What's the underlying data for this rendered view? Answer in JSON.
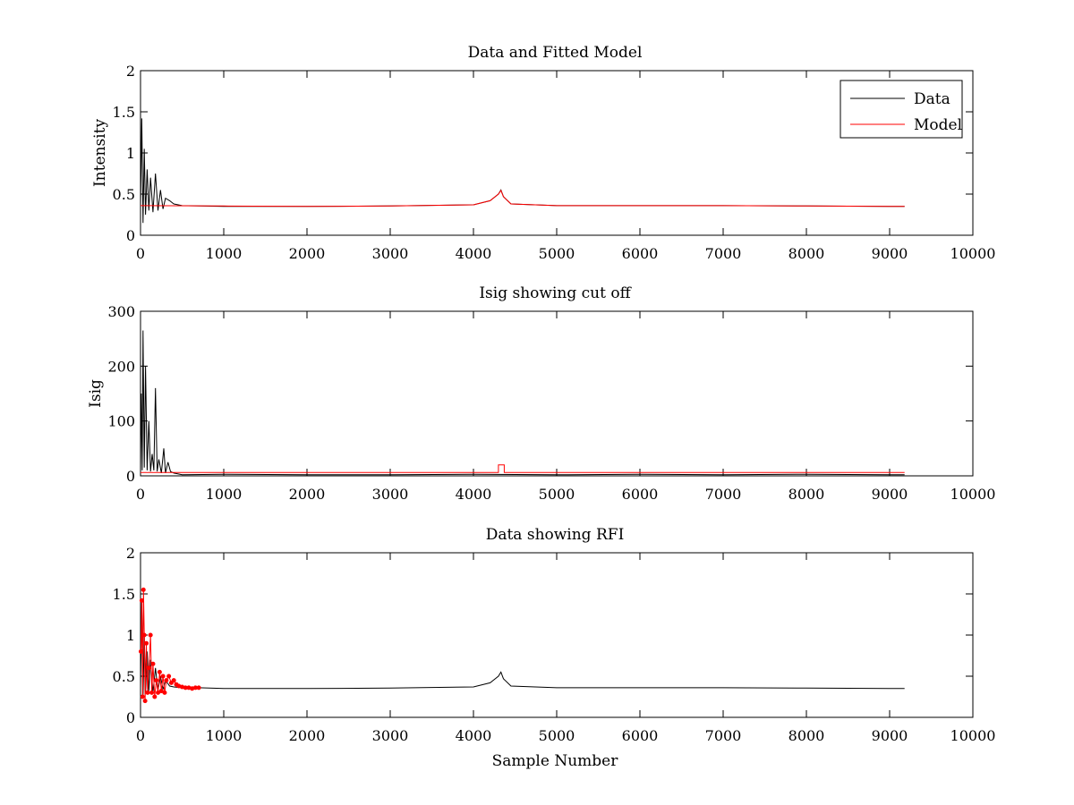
{
  "colors": {
    "data": "#000000",
    "model": "#ff0000",
    "rfi": "#ff0000"
  },
  "chart_data": [
    {
      "type": "line",
      "title": "Data and Fitted Model",
      "xlabel": "",
      "ylabel": "Intensity",
      "xlim": [
        0,
        10000
      ],
      "ylim": [
        0,
        2
      ],
      "xticks": [
        "0",
        "1000",
        "2000",
        "3000",
        "4000",
        "5000",
        "6000",
        "7000",
        "8000",
        "9000",
        "10000"
      ],
      "yticks": [
        "0",
        "0.5",
        "1",
        "1.5",
        "2"
      ],
      "legend": {
        "position": "top-right",
        "entries": [
          "Data",
          "Model"
        ]
      },
      "series": [
        {
          "name": "Data",
          "color": "#000000",
          "x": [
            0,
            15,
            30,
            45,
            60,
            80,
            100,
            120,
            150,
            180,
            210,
            240,
            270,
            300,
            350,
            400,
            500,
            1000,
            2000,
            3000,
            4000,
            4200,
            4300,
            4330,
            4360,
            4450,
            5000,
            6000,
            7000,
            8000,
            9000,
            9180
          ],
          "y": [
            0.35,
            1.42,
            0.15,
            1.05,
            0.25,
            0.8,
            0.3,
            0.7,
            0.28,
            0.75,
            0.3,
            0.55,
            0.32,
            0.45,
            0.42,
            0.38,
            0.36,
            0.35,
            0.35,
            0.355,
            0.37,
            0.42,
            0.5,
            0.55,
            0.47,
            0.38,
            0.36,
            0.36,
            0.36,
            0.355,
            0.35,
            0.35
          ]
        },
        {
          "name": "Model",
          "color": "#ff0000",
          "x": [
            0,
            1000,
            2000,
            3000,
            4000,
            4200,
            4300,
            4330,
            4360,
            4450,
            5000,
            6000,
            7000,
            8000,
            9000,
            9180
          ],
          "y": [
            0.36,
            0.355,
            0.35,
            0.355,
            0.37,
            0.42,
            0.5,
            0.545,
            0.47,
            0.38,
            0.36,
            0.36,
            0.36,
            0.355,
            0.35,
            0.35
          ]
        }
      ]
    },
    {
      "type": "line",
      "title": "Isig showing cut off",
      "xlabel": "",
      "ylabel": "Isig",
      "xlim": [
        0,
        10000
      ],
      "ylim": [
        0,
        300
      ],
      "xticks": [
        "0",
        "1000",
        "2000",
        "3000",
        "4000",
        "5000",
        "6000",
        "7000",
        "8000",
        "9000",
        "10000"
      ],
      "yticks": [
        "0",
        "100",
        "200",
        "300"
      ],
      "series": [
        {
          "color": "#000000",
          "x": [
            0,
            10,
            20,
            30,
            45,
            60,
            80,
            100,
            120,
            140,
            160,
            180,
            200,
            220,
            250,
            280,
            300,
            330,
            360,
            400,
            500,
            1000,
            2000,
            3000,
            4000,
            5000,
            6000,
            7000,
            8000,
            9000,
            9180
          ],
          "y": [
            5,
            150,
            10,
            265,
            15,
            200,
            10,
            100,
            8,
            40,
            10,
            160,
            8,
            30,
            5,
            50,
            5,
            25,
            8,
            5,
            2,
            3,
            2,
            2,
            3,
            2,
            3,
            2,
            3,
            2,
            2
          ]
        },
        {
          "color": "#ff0000",
          "x": [
            0,
            4300,
            4300,
            4370,
            4370,
            9180
          ],
          "y": [
            6,
            6,
            20,
            20,
            6,
            6
          ]
        }
      ]
    },
    {
      "type": "scatter",
      "title": "Data showing RFI",
      "xlabel": "Sample Number",
      "ylabel": "",
      "xlim": [
        0,
        10000
      ],
      "ylim": [
        0,
        2
      ],
      "xticks": [
        "0",
        "1000",
        "2000",
        "3000",
        "4000",
        "5000",
        "6000",
        "7000",
        "8000",
        "9000",
        "10000"
      ],
      "yticks": [
        "0",
        "0.5",
        "1",
        "1.5",
        "2"
      ],
      "series": [
        {
          "color": "#000000",
          "x": [
            0,
            15,
            30,
            45,
            60,
            80,
            100,
            120,
            150,
            180,
            210,
            240,
            270,
            300,
            350,
            400,
            500,
            700,
            1000,
            2000,
            3000,
            4000,
            4200,
            4300,
            4330,
            4360,
            4450,
            5000,
            6000,
            7000,
            8000,
            9000,
            9180
          ],
          "y": [
            0.35,
            1.42,
            0.25,
            1.0,
            0.3,
            0.8,
            0.32,
            0.7,
            0.3,
            0.6,
            0.33,
            0.5,
            0.34,
            0.45,
            0.38,
            0.37,
            0.36,
            0.36,
            0.35,
            0.35,
            0.355,
            0.37,
            0.42,
            0.5,
            0.55,
            0.47,
            0.38,
            0.36,
            0.36,
            0.36,
            0.355,
            0.35,
            0.35
          ]
        },
        {
          "color": "#ff0000",
          "x": [
            5,
            15,
            25,
            35,
            45,
            55,
            70,
            85,
            100,
            120,
            135,
            150,
            170,
            190,
            210,
            230,
            250,
            270,
            290,
            310,
            340,
            370,
            400,
            430,
            460,
            500,
            540,
            580,
            620,
            660,
            700
          ],
          "y": [
            0.8,
            1.42,
            0.25,
            1.55,
            1.0,
            0.2,
            0.9,
            0.3,
            0.6,
            1.0,
            0.3,
            0.65,
            0.25,
            0.45,
            0.3,
            0.55,
            0.32,
            0.5,
            0.3,
            0.45,
            0.5,
            0.42,
            0.45,
            0.4,
            0.38,
            0.37,
            0.36,
            0.36,
            0.35,
            0.36,
            0.36
          ]
        }
      ]
    }
  ]
}
